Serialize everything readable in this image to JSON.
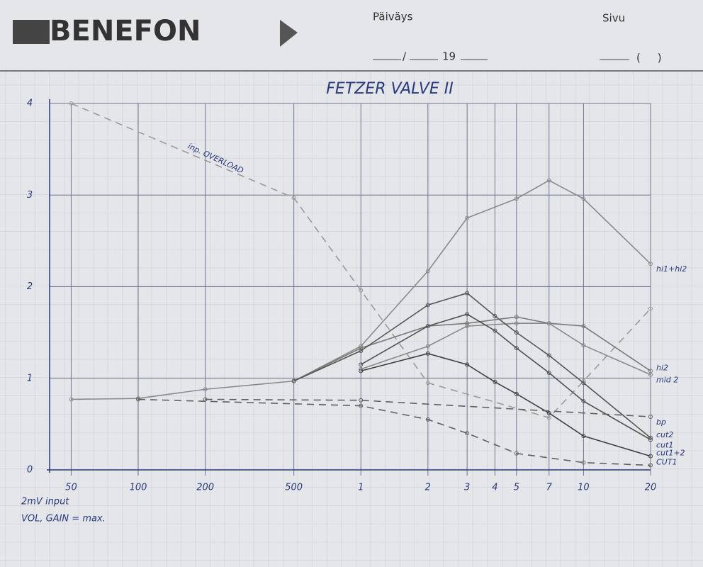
{
  "header": {
    "logo": "BENEFON",
    "date_label": "Päiväys",
    "date_sep": "/",
    "year": "19",
    "page_label": "Sivu",
    "page_paren": "(     )"
  },
  "chart_data": {
    "type": "line",
    "title": "FETZER VALVE II",
    "xscale": "log",
    "grid": true,
    "xlim": [
      40,
      20000
    ],
    "ylim": [
      0,
      4
    ],
    "xticks": [
      50,
      100,
      200,
      500,
      {
        "value": 1000,
        "label": "1"
      },
      {
        "value": 2000,
        "label": "2"
      },
      {
        "value": 3000,
        "label": "3"
      },
      {
        "value": 4000,
        "label": "4"
      },
      {
        "value": 5000,
        "label": "5"
      },
      {
        "value": 7000,
        "label": "7"
      },
      {
        "value": 10000,
        "label": "10"
      },
      {
        "value": 20000,
        "label": "20"
      }
    ],
    "yticks": [
      0,
      1,
      2,
      3,
      4
    ],
    "annotations": [
      "2mV input",
      "VOL, GAIN = max."
    ],
    "series": [
      {
        "name": "inp. OVERLOAD",
        "color": "#9a9a9a",
        "dash": true,
        "x": [
          50,
          500,
          1000,
          2000,
          7000,
          10000,
          20000
        ],
        "values": [
          4.0,
          2.97,
          1.96,
          0.95,
          0.57,
          0.97,
          1.76
        ]
      },
      {
        "name": "hi1+hi2",
        "color": "#8a8a8a",
        "dash": false,
        "x": [
          50,
          100,
          200,
          500,
          1000,
          2000,
          3000,
          5000,
          7000,
          10000,
          20000
        ],
        "values": [
          0.77,
          0.78,
          0.88,
          0.97,
          1.35,
          2.17,
          2.75,
          2.96,
          3.16,
          2.96,
          2.25
        ]
      },
      {
        "name": "hi2",
        "color": "#7a7a7a",
        "dash": false,
        "x": [
          500,
          1000,
          2000,
          3000,
          5000,
          7000,
          10000,
          20000
        ],
        "values": [
          0.97,
          1.33,
          1.57,
          1.6,
          1.67,
          1.6,
          1.57,
          1.08
        ]
      },
      {
        "name": "mid 2",
        "color": "#8a8a8a",
        "dash": false,
        "x": [
          1000,
          2000,
          3000,
          5000,
          7000,
          10000,
          20000
        ],
        "values": [
          1.1,
          1.35,
          1.57,
          1.6,
          1.6,
          1.36,
          1.04
        ]
      },
      {
        "name": "cut2",
        "color": "#555555",
        "dash": false,
        "x": [
          500,
          1000,
          2000,
          3000,
          4000,
          5000,
          7000,
          10000,
          20000
        ],
        "values": [
          0.97,
          1.3,
          1.8,
          1.93,
          1.68,
          1.5,
          1.25,
          0.95,
          0.35
        ]
      },
      {
        "name": "cut1",
        "color": "#505050",
        "dash": false,
        "x": [
          1000,
          2000,
          3000,
          4000,
          5000,
          7000,
          10000,
          20000
        ],
        "values": [
          1.15,
          1.57,
          1.7,
          1.52,
          1.33,
          1.06,
          0.75,
          0.33
        ]
      },
      {
        "name": "cut1+2",
        "color": "#404040",
        "dash": false,
        "x": [
          1000,
          2000,
          3000,
          4000,
          5000,
          7000,
          10000,
          20000
        ],
        "values": [
          1.08,
          1.27,
          1.15,
          0.96,
          0.83,
          0.62,
          0.37,
          0.15
        ]
      },
      {
        "name": "bp",
        "color": "#606060",
        "dash": true,
        "x": [
          200,
          1000,
          20000
        ],
        "values": [
          0.77,
          0.76,
          0.58
        ]
      },
      {
        "name": "CUT1",
        "color": "#606060",
        "dash": true,
        "x": [
          100,
          1000,
          2000,
          3000,
          5000,
          10000,
          20000
        ],
        "values": [
          0.77,
          0.7,
          0.55,
          0.4,
          0.18,
          0.08,
          0.05
        ]
      }
    ]
  }
}
